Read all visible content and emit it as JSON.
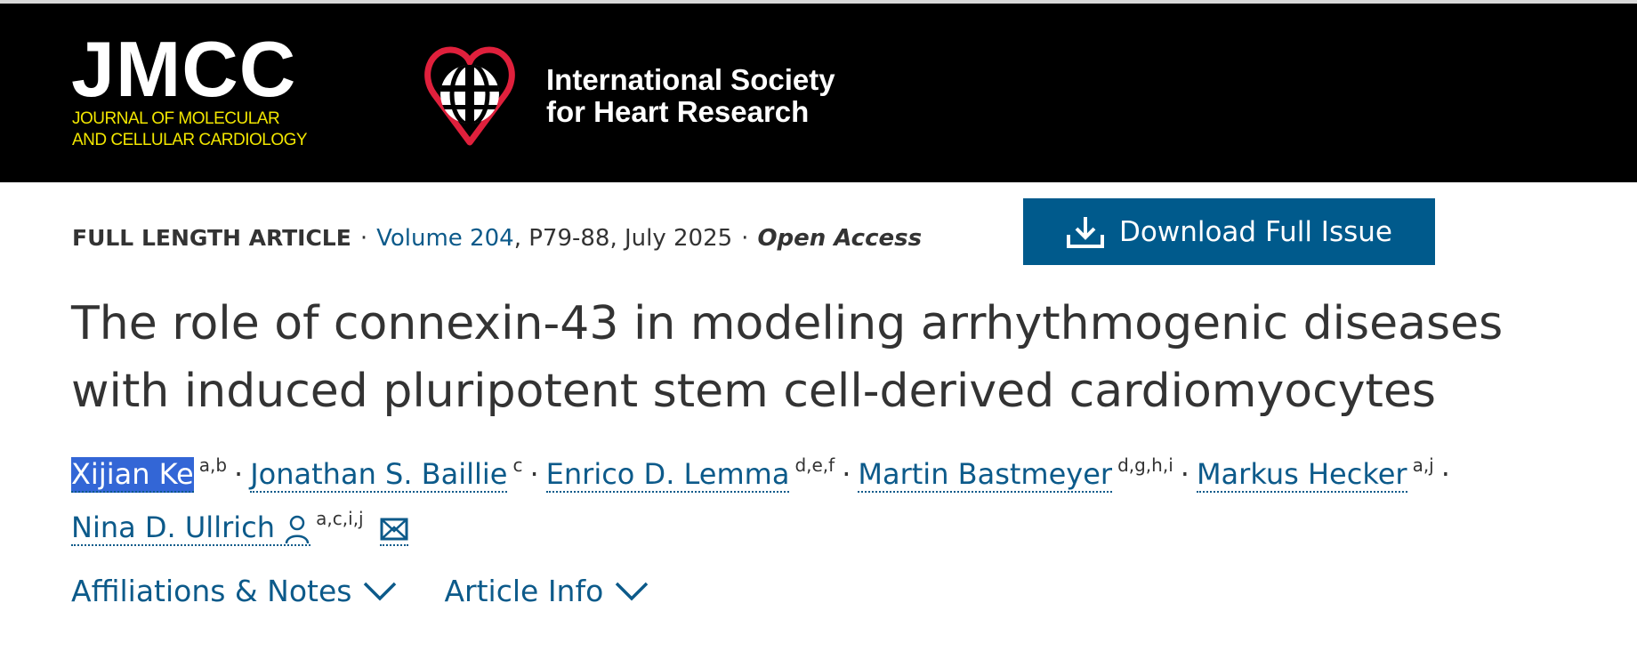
{
  "header": {
    "journal_logo": "JMCC",
    "journal_logo_sub": [
      "JOURNAL OF MOLECULAR",
      "AND CELLULAR CARDIOLOGY"
    ],
    "society_name": [
      "International Society",
      "for Heart Research"
    ],
    "colors": {
      "banner": "#000000",
      "journal_sub": "#f2e600",
      "heart": "#e0203c"
    }
  },
  "meta": {
    "article_type": "FULL LENGTH ARTICLE",
    "volume": "Volume 204",
    "pages_date": ", P79-88, July 2025",
    "access": "Open Access",
    "separator": "·"
  },
  "download": {
    "label": "Download Full Issue",
    "icon": "download-icon"
  },
  "article": {
    "title": "The role of connexin-43 in modeling arrhythmogenic diseases with induced pluripotent stem cell-derived cardiomyocytes"
  },
  "authors": [
    {
      "name": "Xijian Ke",
      "affil": "a,b",
      "selected": true
    },
    {
      "name": "Jonathan S. Baillie",
      "affil": "c"
    },
    {
      "name": "Enrico D. Lemma",
      "affil": "d,e,f"
    },
    {
      "name": "Martin Bastmeyer",
      "affil": "d,g,h,i"
    },
    {
      "name": "Markus Hecker",
      "affil": "a,j"
    },
    {
      "name": "Nina D. Ullrich",
      "affil": "a,c,i,j",
      "icons": [
        "person-icon",
        "email-icon"
      ]
    }
  ],
  "toggles": [
    {
      "label": "Affiliations & Notes",
      "icon": "chevron-down-icon"
    },
    {
      "label": "Article Info",
      "icon": "chevron-down-icon"
    }
  ],
  "accent": "#0c5a8a",
  "button_color": "#005a8c"
}
